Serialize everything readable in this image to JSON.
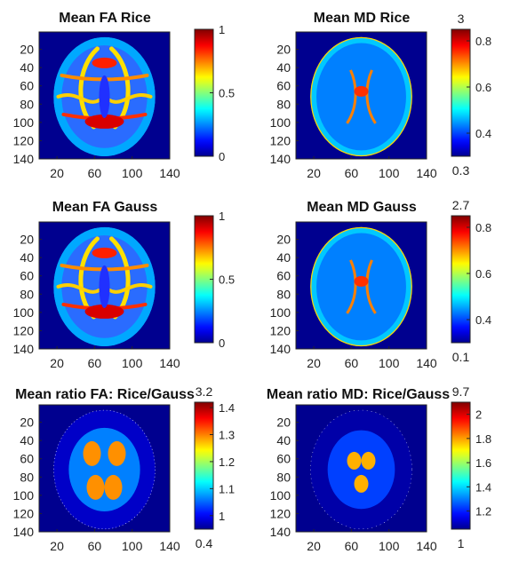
{
  "figure": {
    "colormap": "jet",
    "background_value_color": "#00008f",
    "jet_stops": [
      "#00008f",
      "#0000ff",
      "#00ffff",
      "#ffff00",
      "#ff0000",
      "#800000"
    ]
  },
  "chart_data": [
    {
      "id": "fa-rice",
      "type": "heatmap",
      "title": "Mean FA Rice",
      "structure": "fa",
      "x_ticks": [
        "20",
        "60",
        "100",
        "140"
      ],
      "y_ticks": [
        "20",
        "40",
        "60",
        "80",
        "100",
        "120",
        "140"
      ],
      "xlim": [
        1,
        140
      ],
      "ylim": [
        1,
        140
      ],
      "colorbar": {
        "clim": [
          0,
          1
        ],
        "ticks": [
          "0",
          "0.5",
          "1"
        ],
        "tick_values": [
          0,
          0.5,
          1
        ],
        "top_label": "",
        "bottom_label": ""
      }
    },
    {
      "id": "md-rice",
      "type": "heatmap",
      "title": "Mean MD Rice",
      "structure": "md",
      "x_ticks": [
        "20",
        "60",
        "100",
        "140"
      ],
      "y_ticks": [
        "20",
        "40",
        "60",
        "80",
        "100",
        "120",
        "140"
      ],
      "xlim": [
        1,
        140
      ],
      "ylim": [
        1,
        140
      ],
      "colorbar": {
        "clim": [
          0.3,
          0.85
        ],
        "ticks": [
          "0.4",
          "0.6",
          "0.8"
        ],
        "tick_values": [
          0.4,
          0.6,
          0.8
        ],
        "top_label": "3",
        "bottom_label": "0.3"
      }
    },
    {
      "id": "fa-gauss",
      "type": "heatmap",
      "title": "Mean FA Gauss",
      "structure": "fa",
      "x_ticks": [
        "20",
        "60",
        "100",
        "140"
      ],
      "y_ticks": [
        "20",
        "40",
        "60",
        "80",
        "100",
        "120",
        "140"
      ],
      "xlim": [
        1,
        140
      ],
      "ylim": [
        1,
        140
      ],
      "colorbar": {
        "clim": [
          0,
          1
        ],
        "ticks": [
          "0",
          "0.5",
          "1"
        ],
        "tick_values": [
          0,
          0.5,
          1
        ],
        "top_label": "",
        "bottom_label": ""
      }
    },
    {
      "id": "md-gauss",
      "type": "heatmap",
      "title": "Mean MD Gauss",
      "structure": "md",
      "x_ticks": [
        "20",
        "60",
        "100",
        "140"
      ],
      "y_ticks": [
        "20",
        "40",
        "60",
        "80",
        "100",
        "120",
        "140"
      ],
      "xlim": [
        1,
        140
      ],
      "ylim": [
        1,
        140
      ],
      "colorbar": {
        "clim": [
          0.3,
          0.85
        ],
        "ticks": [
          "0.4",
          "0.6",
          "0.8"
        ],
        "tick_values": [
          0.4,
          0.6,
          0.8
        ],
        "top_label": "2.7",
        "bottom_label": "0.1"
      }
    },
    {
      "id": "ratio-fa",
      "type": "heatmap",
      "title": "Mean ratio FA: Rice/Gauss",
      "structure": "ratio-fa",
      "x_ticks": [
        "20",
        "60",
        "100",
        "140"
      ],
      "y_ticks": [
        "20",
        "40",
        "60",
        "80",
        "100",
        "120",
        "140"
      ],
      "xlim": [
        1,
        140
      ],
      "ylim": [
        1,
        140
      ],
      "colorbar": {
        "clim": [
          0.95,
          1.42
        ],
        "ticks": [
          "1",
          "1.1",
          "1.2",
          "1.3",
          "1.4"
        ],
        "tick_values": [
          1,
          1.1,
          1.2,
          1.3,
          1.4
        ],
        "top_label": "3.2",
        "bottom_label": "0.4"
      }
    },
    {
      "id": "ratio-md",
      "type": "heatmap",
      "title": "Mean ratio MD: Rice/Gauss",
      "structure": "ratio-md",
      "x_ticks": [
        "20",
        "60",
        "100",
        "140"
      ],
      "y_ticks": [
        "20",
        "40",
        "60",
        "80",
        "100",
        "120",
        "140"
      ],
      "xlim": [
        1,
        140
      ],
      "ylim": [
        1,
        140
      ],
      "colorbar": {
        "clim": [
          1.05,
          2.1
        ],
        "ticks": [
          "1.2",
          "1.4",
          "1.6",
          "1.8",
          "2"
        ],
        "tick_values": [
          1.2,
          1.4,
          1.6,
          1.8,
          2
        ],
        "top_label": "9.7",
        "bottom_label": "1"
      }
    }
  ]
}
